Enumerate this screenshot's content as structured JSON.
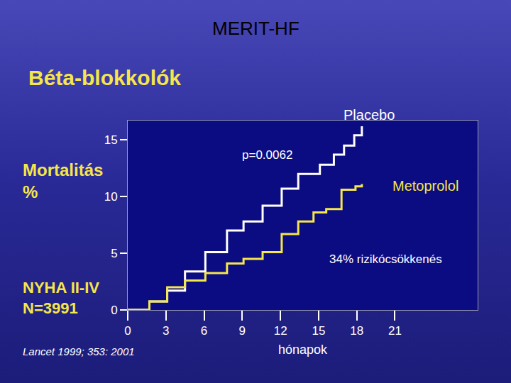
{
  "chart_data": {
    "type": "line",
    "title": "MERIT-HF",
    "subtitle": "Béta-blokkolók",
    "y_label": [
      "Mortalitás",
      "%"
    ],
    "x_label": "hónapok",
    "annotations": [
      "p=0.0062",
      "34% rizikócsökkenés",
      [
        "NYHA II-IV",
        "N=3991"
      ],
      "Lancet 1999; 353: 2001"
    ],
    "line_style": "step",
    "grid": false,
    "xlim": [
      0,
      27.5
    ],
    "ylim": [
      0,
      16.7
    ],
    "xticks": [
      0,
      3,
      6,
      9,
      12,
      15,
      18,
      21
    ],
    "yticks": [
      0,
      5,
      10,
      15
    ],
    "series": [
      {
        "name": "Placebo",
        "color": "#ffffff",
        "x": [
          0,
          1.7,
          3.1,
          4.5,
          6.1,
          7.8,
          9.1,
          10.6,
          12.1,
          13.4,
          15.1,
          16.2,
          17.0,
          17.8,
          18.4
        ],
        "values": [
          0,
          0.75,
          1.7,
          3.4,
          5.1,
          7.0,
          7.8,
          9.2,
          10.7,
          12.0,
          12.8,
          13.7,
          14.5,
          15.4,
          16.2
        ]
      },
      {
        "name": "Metoprolol",
        "color": "#f5e64a",
        "x": [
          0,
          1.7,
          3.1,
          4.5,
          6.1,
          7.8,
          9.1,
          10.6,
          12.1,
          13.4,
          14.6,
          15.6,
          16.8,
          17.9,
          18.4
        ],
        "values": [
          0,
          0.75,
          2.0,
          2.6,
          3.25,
          4.1,
          4.5,
          5.1,
          6.7,
          7.8,
          8.6,
          8.9,
          10.6,
          10.9,
          11.1
        ]
      }
    ]
  }
}
